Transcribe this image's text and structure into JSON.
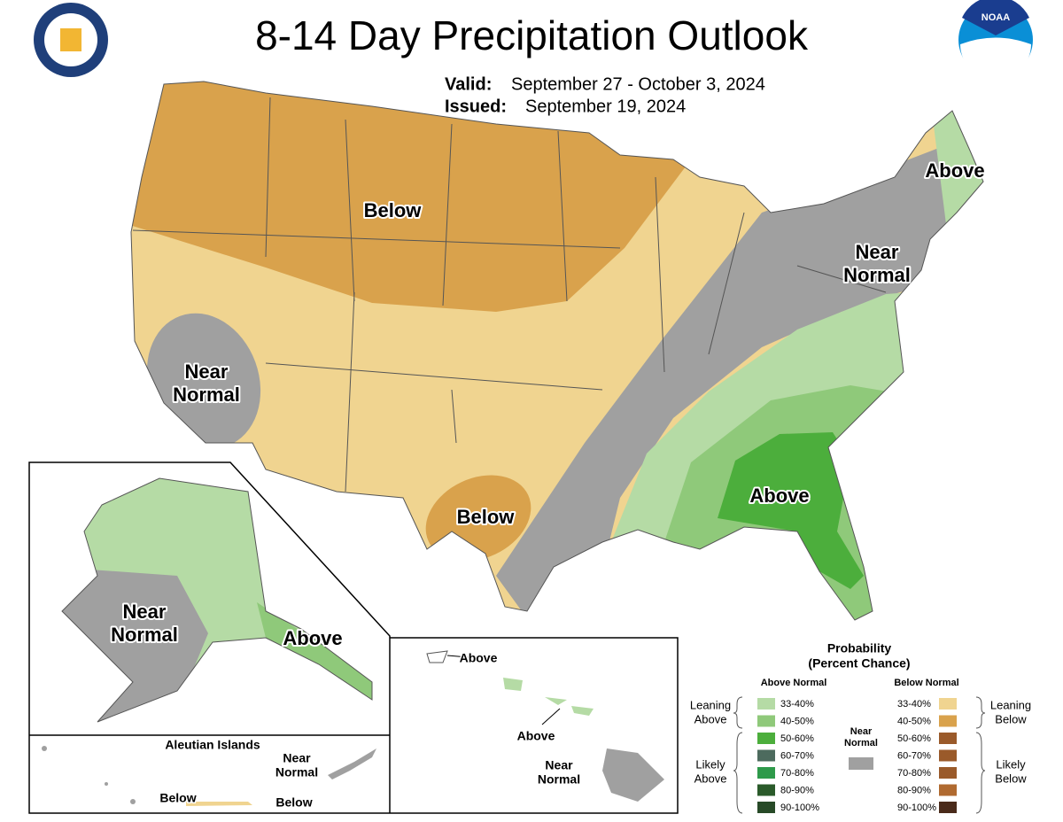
{
  "header": {
    "title": "8-14 Day Precipitation Outlook",
    "valid_label": "Valid:",
    "valid_dates": "September 27 - October 3, 2024",
    "issued_label": "Issued:",
    "issued_date": "September 19, 2024",
    "logo_text": "NOAA"
  },
  "map_labels": {
    "conus": [
      {
        "lines": [
          "Below"
        ]
      },
      {
        "lines": [
          "Near",
          "Normal"
        ]
      },
      {
        "lines": [
          "Below"
        ]
      },
      {
        "lines": [
          "Near",
          "Normal"
        ]
      },
      {
        "lines": [
          "Above"
        ]
      },
      {
        "lines": [
          "Above"
        ]
      }
    ],
    "alaska": [
      {
        "lines": [
          "Near",
          "Normal"
        ]
      },
      {
        "lines": [
          "Above"
        ]
      }
    ],
    "hawaii": [
      {
        "lines": [
          "Above"
        ]
      },
      {
        "lines": [
          "Above"
        ]
      },
      {
        "lines": [
          "Near",
          "Normal"
        ]
      }
    ],
    "aleutian": {
      "title": "Aleutian Islands",
      "labels": [
        {
          "lines": [
            "Near",
            "Normal"
          ]
        },
        {
          "lines": [
            "Below"
          ]
        },
        {
          "lines": [
            "Below"
          ]
        }
      ]
    }
  },
  "legend": {
    "title_lines": [
      "Probability",
      "(Percent Chance)"
    ],
    "above_heading": "Above Normal",
    "below_heading": "Below Normal",
    "above": [
      {
        "range": "33-40%",
        "color": "#b5dba5"
      },
      {
        "range": "40-50%",
        "color": "#8fc97a"
      },
      {
        "range": "50-60%",
        "color": "#4cae3c"
      },
      {
        "range": "60-70%",
        "color": "#4d6b5e"
      },
      {
        "range": "70-80%",
        "color": "#2e9a4a"
      },
      {
        "range": "80-90%",
        "color": "#2a5a2a"
      },
      {
        "range": "90-100%",
        "color": "#274a27"
      }
    ],
    "below": [
      {
        "range": "33-40%",
        "color": "#f0d490"
      },
      {
        "range": "40-50%",
        "color": "#d9a24c"
      },
      {
        "range": "50-60%",
        "color": "#9a5a2a"
      },
      {
        "range": "60-70%",
        "color": "#9a5a2a"
      },
      {
        "range": "70-80%",
        "color": "#9a5a2a"
      },
      {
        "range": "80-90%",
        "color": "#b06a30"
      },
      {
        "range": "90-100%",
        "color": "#4a2a1a"
      }
    ],
    "near_normal": {
      "lines": [
        "Near",
        "Normal"
      ],
      "color": "#a0a0a0"
    },
    "leaning_above": [
      "Leaning",
      "Above"
    ],
    "likely_above": [
      "Likely",
      "Above"
    ],
    "leaning_below": [
      "Leaning",
      "Below"
    ],
    "likely_below": [
      "Likely",
      "Below"
    ]
  }
}
